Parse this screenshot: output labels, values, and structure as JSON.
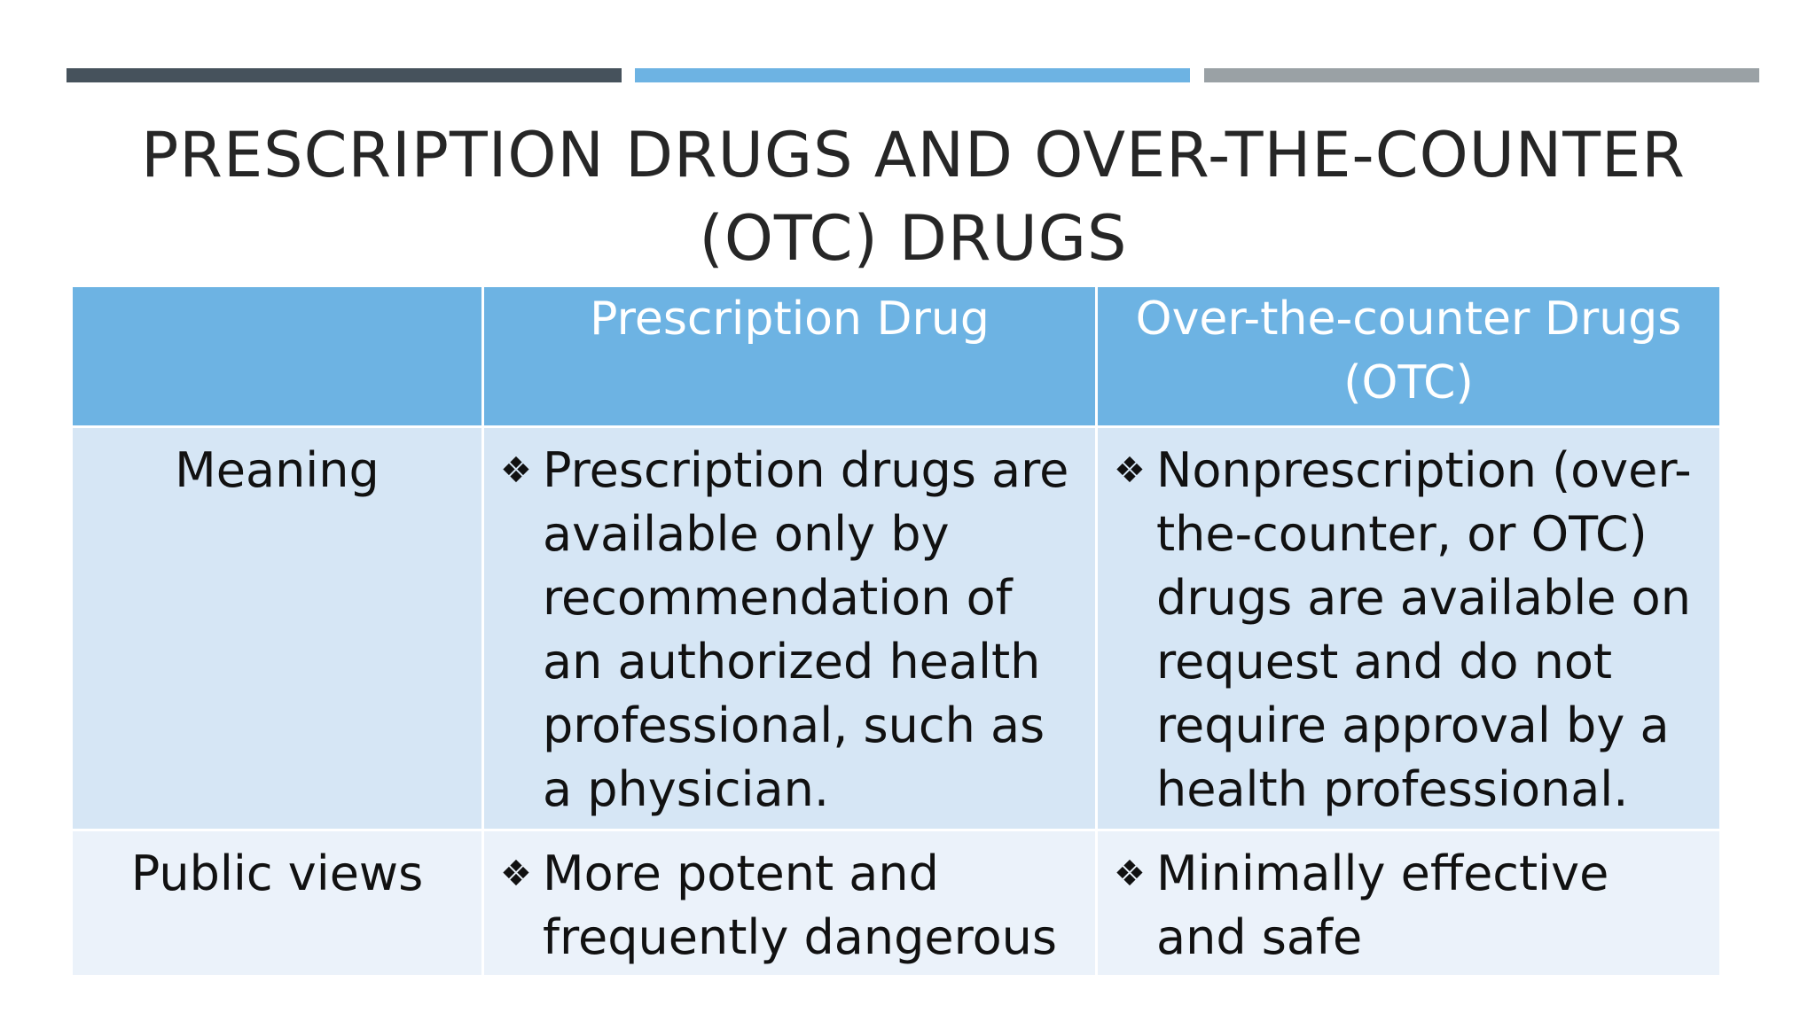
{
  "accent_bars": [
    {
      "color": "#46525c"
    },
    {
      "color": "#6db3e3"
    },
    {
      "color": "#9aa1a5"
    }
  ],
  "title": {
    "line1": "PRESCRIPTION DRUGS AND OVER-THE-COUNTER",
    "line2": "(OTC) DRUGS"
  },
  "table": {
    "headers": [
      "",
      "Prescription Drug",
      "Over-the-counter Drugs (OTC)"
    ],
    "rows": [
      {
        "label": "Meaning",
        "prescription": "Prescription drugs are available only by recommendation of an authorized health professional, such as a physician.",
        "otc": "Nonprescription (over-the-counter, or OTC) drugs are available on request and do not require approval by a health professional."
      },
      {
        "label": "Public views",
        "prescription": "More potent and frequently dangerous",
        "otc": "Minimally effective and safe"
      }
    ],
    "bullet_icon": "diamond-bullet-icon",
    "colors": {
      "header_bg": "#6db3e3",
      "row1_bg": "#d6e6f5",
      "row2_bg": "#ebf2fa"
    }
  }
}
